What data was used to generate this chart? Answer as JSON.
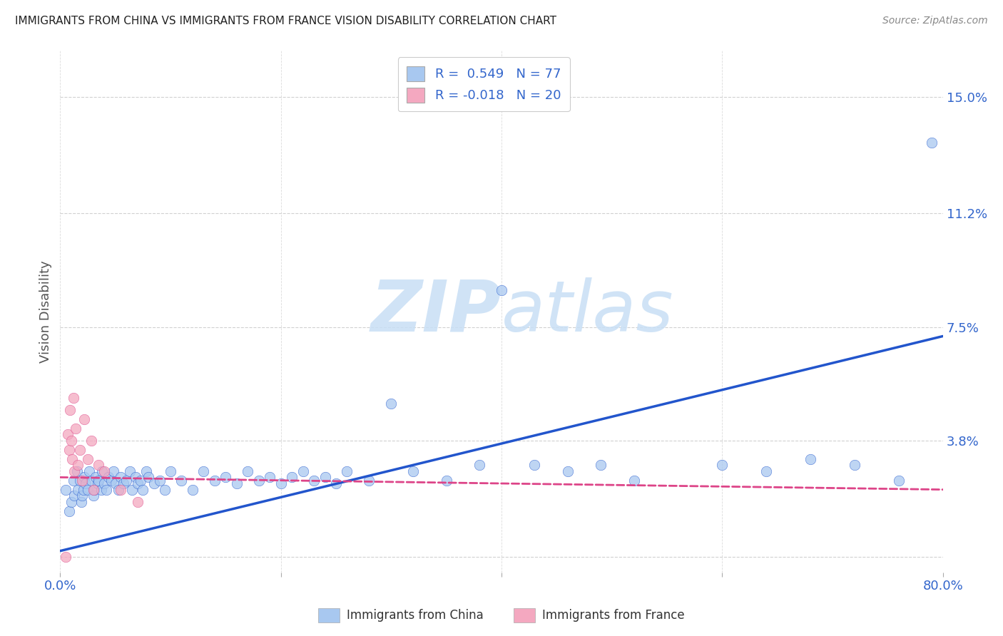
{
  "title": "IMMIGRANTS FROM CHINA VS IMMIGRANTS FROM FRANCE VISION DISABILITY CORRELATION CHART",
  "source": "Source: ZipAtlas.com",
  "ylabel": "Vision Disability",
  "xlabel": "",
  "xlim": [
    0.0,
    0.8
  ],
  "ylim": [
    -0.005,
    0.165
  ],
  "yticks": [
    0.0,
    0.038,
    0.075,
    0.112,
    0.15
  ],
  "ytick_labels": [
    "",
    "3.8%",
    "7.5%",
    "11.2%",
    "15.0%"
  ],
  "xticks": [
    0.0,
    0.2,
    0.4,
    0.6,
    0.8
  ],
  "xtick_labels": [
    "0.0%",
    "",
    "",
    "",
    "80.0%"
  ],
  "R_china": 0.549,
  "N_china": 77,
  "R_france": -0.018,
  "N_france": 20,
  "china_color": "#a8c8f0",
  "france_color": "#f4a8c0",
  "china_line_color": "#2255cc",
  "france_line_color": "#dd4488",
  "background_color": "#ffffff",
  "grid_color": "#cccccc",
  "title_color": "#222222",
  "axis_label_color": "#3366cc",
  "watermark_color": "#c8dff5",
  "china_line_start_y": 0.002,
  "china_line_end_y": 0.072,
  "france_line_start_y": 0.026,
  "france_line_end_y": 0.022,
  "china_x": [
    0.005,
    0.008,
    0.01,
    0.012,
    0.013,
    0.015,
    0.016,
    0.018,
    0.019,
    0.02,
    0.021,
    0.022,
    0.023,
    0.025,
    0.026,
    0.028,
    0.03,
    0.031,
    0.032,
    0.034,
    0.035,
    0.037,
    0.038,
    0.04,
    0.042,
    0.044,
    0.046,
    0.048,
    0.05,
    0.053,
    0.055,
    0.057,
    0.06,
    0.063,
    0.065,
    0.068,
    0.07,
    0.073,
    0.075,
    0.078,
    0.08,
    0.085,
    0.09,
    0.095,
    0.1,
    0.11,
    0.12,
    0.13,
    0.14,
    0.15,
    0.16,
    0.17,
    0.18,
    0.19,
    0.2,
    0.21,
    0.22,
    0.23,
    0.24,
    0.25,
    0.26,
    0.28,
    0.3,
    0.32,
    0.35,
    0.38,
    0.4,
    0.43,
    0.46,
    0.49,
    0.52,
    0.6,
    0.64,
    0.68,
    0.72,
    0.76,
    0.79
  ],
  "china_y": [
    0.022,
    0.015,
    0.018,
    0.025,
    0.02,
    0.028,
    0.022,
    0.025,
    0.018,
    0.02,
    0.022,
    0.026,
    0.024,
    0.022,
    0.028,
    0.025,
    0.02,
    0.022,
    0.026,
    0.024,
    0.025,
    0.022,
    0.028,
    0.024,
    0.022,
    0.026,
    0.025,
    0.028,
    0.024,
    0.022,
    0.026,
    0.024,
    0.025,
    0.028,
    0.022,
    0.026,
    0.024,
    0.025,
    0.022,
    0.028,
    0.026,
    0.024,
    0.025,
    0.022,
    0.028,
    0.025,
    0.022,
    0.028,
    0.025,
    0.026,
    0.024,
    0.028,
    0.025,
    0.026,
    0.024,
    0.026,
    0.028,
    0.025,
    0.026,
    0.024,
    0.028,
    0.025,
    0.05,
    0.028,
    0.025,
    0.03,
    0.087,
    0.03,
    0.028,
    0.03,
    0.025,
    0.03,
    0.028,
    0.032,
    0.03,
    0.025,
    0.135
  ],
  "france_x": [
    0.005,
    0.007,
    0.008,
    0.009,
    0.01,
    0.011,
    0.012,
    0.013,
    0.014,
    0.016,
    0.018,
    0.02,
    0.022,
    0.025,
    0.028,
    0.03,
    0.035,
    0.04,
    0.055,
    0.07
  ],
  "france_y": [
    0.0,
    0.04,
    0.035,
    0.048,
    0.038,
    0.032,
    0.052,
    0.028,
    0.042,
    0.03,
    0.035,
    0.025,
    0.045,
    0.032,
    0.038,
    0.022,
    0.03,
    0.028,
    0.022,
    0.018
  ]
}
